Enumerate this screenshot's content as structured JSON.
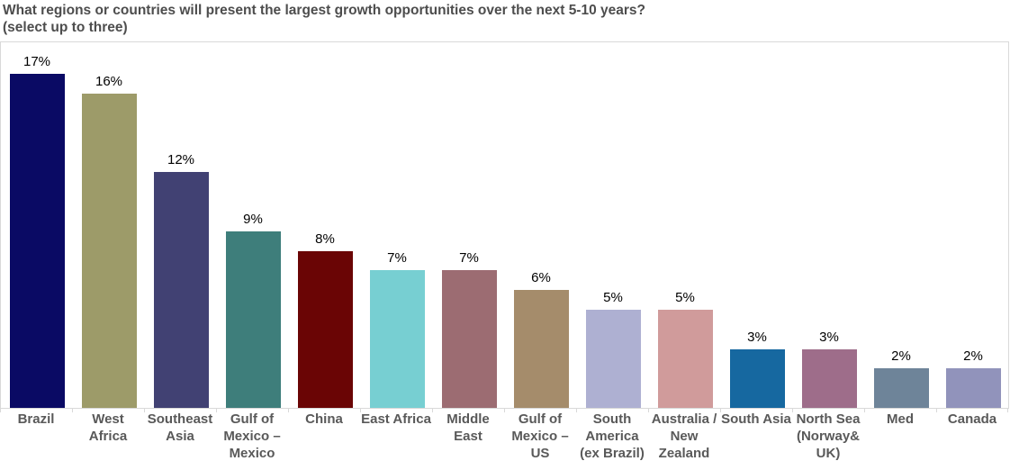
{
  "title": {
    "line1": "What regions or countries will present the largest growth opportunities over the next 5-10 years?",
    "line2": "(select up to three)"
  },
  "chart_data": {
    "type": "bar",
    "title": "What regions or countries will present the largest growth opportunities over the next 5-10 years?",
    "subtitle": "(select up to three)",
    "categories": [
      "Brazil",
      "West Africa",
      "Southeast Asia",
      "Gulf of Mexico – Mexico",
      "China",
      "East Africa",
      "Middle East",
      "Gulf of Mexico – US",
      "South America (ex Brazil)",
      "Australia / New Zealand",
      "South Asia",
      "North Sea (Norway& UK)",
      "Med",
      "Canada"
    ],
    "values": [
      17,
      16,
      12,
      9,
      8,
      7,
      7,
      6,
      5,
      5,
      3,
      3,
      2,
      2
    ],
    "value_labels": [
      "17%",
      "16%",
      "12%",
      "9%",
      "8%",
      "7%",
      "7%",
      "6%",
      "5%",
      "5%",
      "3%",
      "3%",
      "2%",
      "2%"
    ],
    "bar_colors": [
      "#0a0a64",
      "#9d9b69",
      "#414173",
      "#3e7e7b",
      "#6a0505",
      "#77cfd2",
      "#9c6c72",
      "#a58c6b",
      "#aeb0d2",
      "#d09b9b",
      "#1668a0",
      "#9e6d8a",
      "#6e8499",
      "#9193bb"
    ],
    "xlabel": "",
    "ylabel": "",
    "ylim": [
      0,
      18
    ],
    "grid": false,
    "legend": false,
    "value_labels_shown": true,
    "title_color": "#4d4d4d",
    "axis_label_color": "#595959",
    "value_label_color": "#000000",
    "axis_line_color": "#d9d9d9",
    "plot_background": "#ffffff"
  }
}
